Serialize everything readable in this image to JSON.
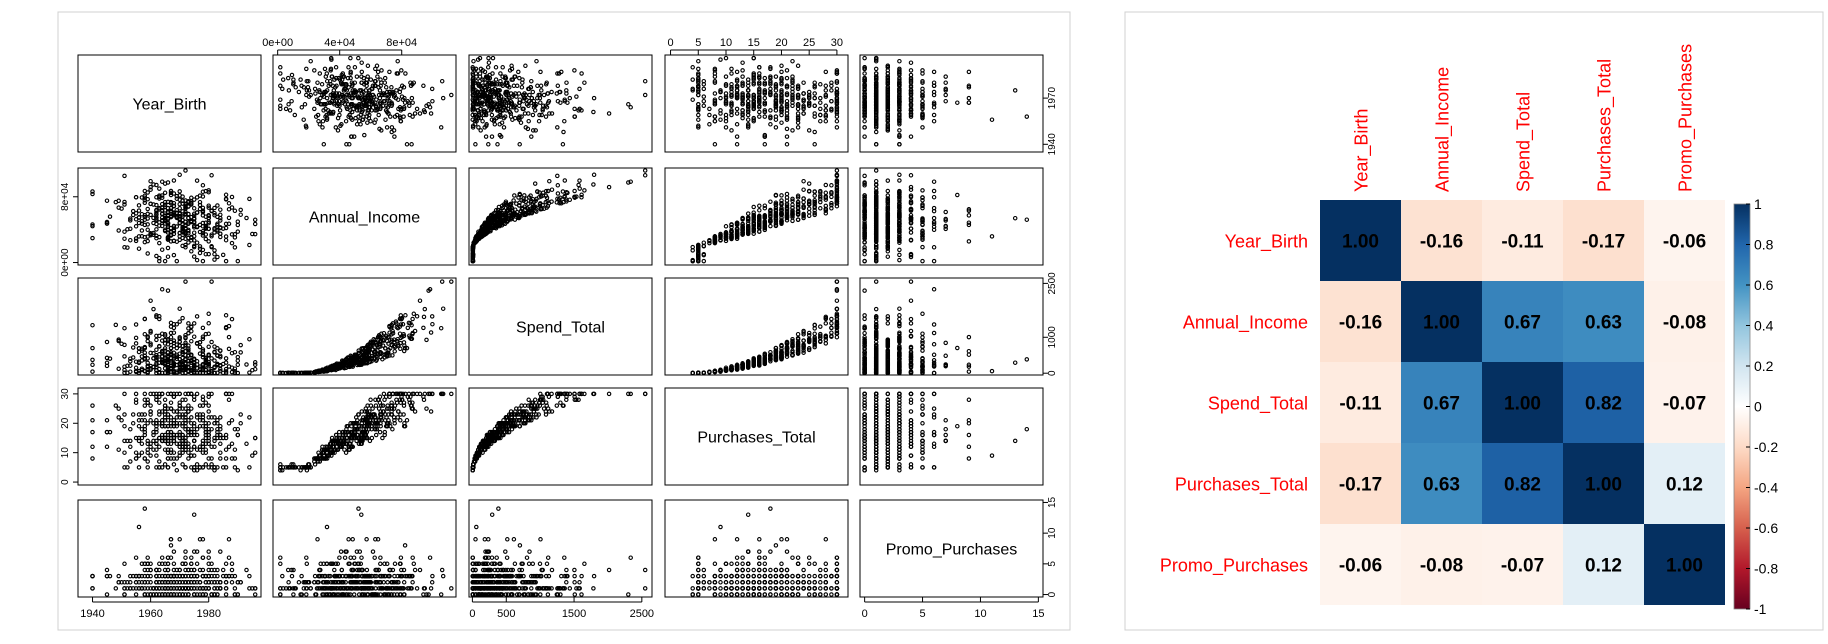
{
  "chart_data": [
    {
      "type": "scatter",
      "variables": [
        "Year_Birth",
        "Annual_Income",
        "Spend_Total",
        "Purchases_Total",
        "Promo_Purchases"
      ],
      "axes": [
        {
          "variable": "Year_Birth",
          "range": [
            1935,
            1998
          ],
          "ticks": [
            "1940",
            "1960",
            "1980"
          ],
          "tick_values": [
            1940,
            1960,
            1980
          ],
          "right_ticks": [
            "1940",
            "1970"
          ],
          "right_tick_values": [
            1940,
            1970
          ]
        },
        {
          "variable": "Annual_Income",
          "range": [
            -3000,
            115000
          ],
          "ticks": [
            "0e+00",
            "4e+04",
            "8e+04"
          ],
          "tick_values": [
            0,
            40000,
            80000
          ]
        },
        {
          "variable": "Spend_Total",
          "range": [
            -50,
            2650
          ],
          "ticks": [
            "0",
            "500",
            "1500",
            "2500"
          ],
          "tick_values": [
            0,
            500,
            1500,
            2500
          ],
          "right_ticks": [
            "0",
            "1000",
            "2500"
          ],
          "right_tick_values": [
            0,
            1000,
            2500
          ]
        },
        {
          "variable": "Purchases_Total",
          "range": [
            -1,
            32
          ],
          "ticks": [
            "0",
            "5",
            "10",
            "15",
            "20",
            "25",
            "30"
          ],
          "tick_values": [
            0,
            5,
            10,
            15,
            20,
            25,
            30
          ],
          "left_ticks": [
            "0",
            "10",
            "20",
            "30"
          ],
          "left_tick_values": [
            0,
            10,
            20,
            30
          ]
        },
        {
          "variable": "Promo_Purchases",
          "range": [
            -0.4,
            15.4
          ],
          "ticks": [
            "0",
            "5",
            "10",
            "15"
          ],
          "tick_values": [
            0,
            5,
            10,
            15
          ]
        }
      ],
      "left_axis_labels": {
        "Annual_Income": [
          "0e+00",
          "8e+04"
        ]
      }
    },
    {
      "type": "heatmap",
      "rows": [
        "Year_Birth",
        "Annual_Income",
        "Spend_Total",
        "Purchases_Total",
        "Promo_Purchases"
      ],
      "columns": [
        "Year_Birth",
        "Annual_Income",
        "Spend_Total",
        "Purchases_Total",
        "Promo_Purchases"
      ],
      "values": [
        [
          1.0,
          -0.16,
          -0.11,
          -0.17,
          -0.06
        ],
        [
          -0.16,
          1.0,
          0.67,
          0.63,
          -0.08
        ],
        [
          -0.11,
          0.67,
          1.0,
          0.82,
          -0.07
        ],
        [
          -0.17,
          0.63,
          0.82,
          1.0,
          0.12
        ],
        [
          -0.06,
          -0.08,
          -0.07,
          0.12,
          1.0
        ]
      ],
      "cell_labels": [
        [
          "1.00",
          "-0.16",
          "-0.11",
          "-0.17",
          "-0.06"
        ],
        [
          "-0.16",
          "1.00",
          "0.67",
          "0.63",
          "-0.08"
        ],
        [
          "-0.11",
          "0.67",
          "1.00",
          "0.82",
          "-0.07"
        ],
        [
          "-0.17",
          "0.63",
          "0.82",
          "1.00",
          "0.12"
        ],
        [
          "-0.06",
          "-0.08",
          "-0.07",
          "0.12",
          "1.00"
        ]
      ],
      "colorbar": {
        "range": [
          -1,
          1
        ],
        "ticks": [
          "1",
          "0.8",
          "0.6",
          "0.4",
          "0.2",
          "0",
          "-0.2",
          "-0.4",
          "-0.6",
          "-0.8",
          "-1"
        ],
        "tick_values": [
          1,
          0.8,
          0.6,
          0.4,
          0.2,
          0,
          -0.2,
          -0.4,
          -0.6,
          -0.8,
          -1
        ],
        "colors": [
          "#67001F",
          "#B2182B",
          "#D6604D",
          "#F4A582",
          "#FDDBC7",
          "#FFFFFF",
          "#D1E5F0",
          "#92C5DE",
          "#4393C3",
          "#2166AC",
          "#053061"
        ]
      },
      "label_color": "#FF0000"
    }
  ]
}
